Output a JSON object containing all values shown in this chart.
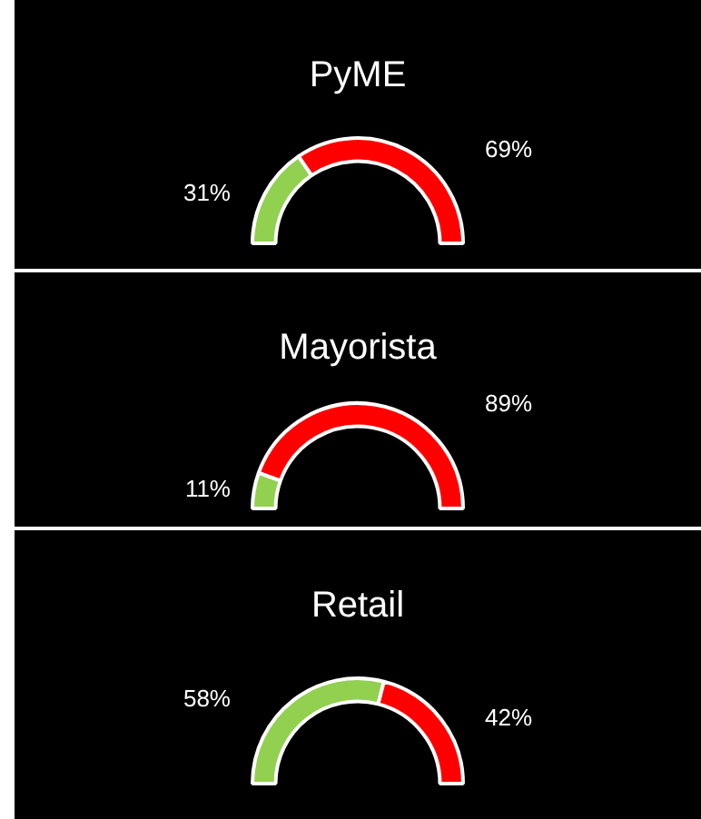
{
  "chart_data": [
    {
      "type": "donut",
      "title": "PyME",
      "categories": [
        null,
        null
      ],
      "values": [
        31,
        69
      ],
      "colors": [
        "#92d050",
        "#ff0000"
      ],
      "value_labels": [
        "31%",
        "69%"
      ]
    },
    {
      "type": "donut",
      "title": "Mayorista",
      "categories": [
        null,
        null
      ],
      "values": [
        11,
        89
      ],
      "colors": [
        "#92d050",
        "#ff0000"
      ],
      "value_labels": [
        "11%",
        "89%"
      ]
    },
    {
      "type": "donut",
      "title": "Retail",
      "categories": [
        null,
        null
      ],
      "values": [
        58,
        42
      ],
      "colors": [
        "#92d050",
        "#ff0000"
      ],
      "value_labels": [
        "58%",
        "42%"
      ]
    }
  ]
}
